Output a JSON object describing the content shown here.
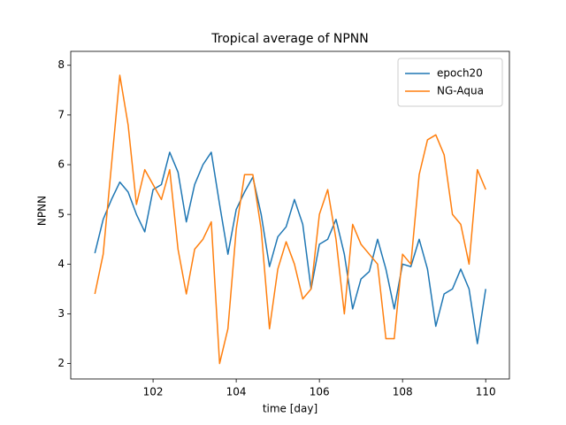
{
  "chart_data": {
    "type": "line",
    "title": "Tropical average of NPNN",
    "xlabel": "time [day]",
    "ylabel": "NPNN",
    "x": [
      100.6,
      100.8,
      101.0,
      101.2,
      101.4,
      101.6,
      101.8,
      102.0,
      102.2,
      102.4,
      102.6,
      102.8,
      103.0,
      103.2,
      103.4,
      103.6,
      103.8,
      104.0,
      104.2,
      104.4,
      104.6,
      104.8,
      105.0,
      105.2,
      105.4,
      105.6,
      105.8,
      106.0,
      106.2,
      106.4,
      106.6,
      106.8,
      107.0,
      107.2,
      107.4,
      107.6,
      107.8,
      108.0,
      108.2,
      108.4,
      108.6,
      108.8,
      109.0,
      109.2,
      109.4,
      109.6,
      109.8,
      110.0
    ],
    "series": [
      {
        "name": "epoch20",
        "color": "#1f77b4",
        "values": [
          4.22,
          4.9,
          5.3,
          5.65,
          5.45,
          5.0,
          4.65,
          5.5,
          5.6,
          6.25,
          5.85,
          4.85,
          5.6,
          6.0,
          6.25,
          5.2,
          4.2,
          5.1,
          5.45,
          5.75,
          5.0,
          3.95,
          4.55,
          4.75,
          5.3,
          4.8,
          3.5,
          4.4,
          4.5,
          4.9,
          4.2,
          3.1,
          3.7,
          3.85,
          4.5,
          3.9,
          3.1,
          4.0,
          3.95,
          4.5,
          3.9,
          2.75,
          3.4,
          3.5,
          3.9,
          3.5,
          2.4,
          3.5
        ]
      },
      {
        "name": "NG-Aqua",
        "color": "#ff7f0e",
        "values": [
          3.4,
          4.2,
          6.0,
          7.8,
          6.8,
          5.2,
          5.9,
          5.6,
          5.3,
          5.9,
          4.3,
          3.4,
          4.3,
          4.5,
          4.85,
          2.0,
          2.7,
          4.7,
          5.8,
          5.8,
          4.7,
          2.7,
          3.9,
          4.45,
          4.0,
          3.3,
          3.5,
          5.0,
          5.5,
          4.5,
          3.0,
          4.8,
          4.4,
          4.2,
          4.0,
          2.5,
          2.5,
          4.2,
          4.0,
          5.8,
          6.5,
          6.6,
          6.2,
          5.0,
          4.8,
          4.0,
          5.9,
          5.5
        ]
      }
    ],
    "xlim": [
      100.02,
      110.57
    ],
    "ylim": [
      1.69,
      8.28
    ],
    "xticks": [
      102,
      104,
      106,
      108,
      110
    ],
    "yticks": [
      2,
      3,
      4,
      5,
      6,
      7,
      8
    ],
    "legend": "upper right"
  }
}
